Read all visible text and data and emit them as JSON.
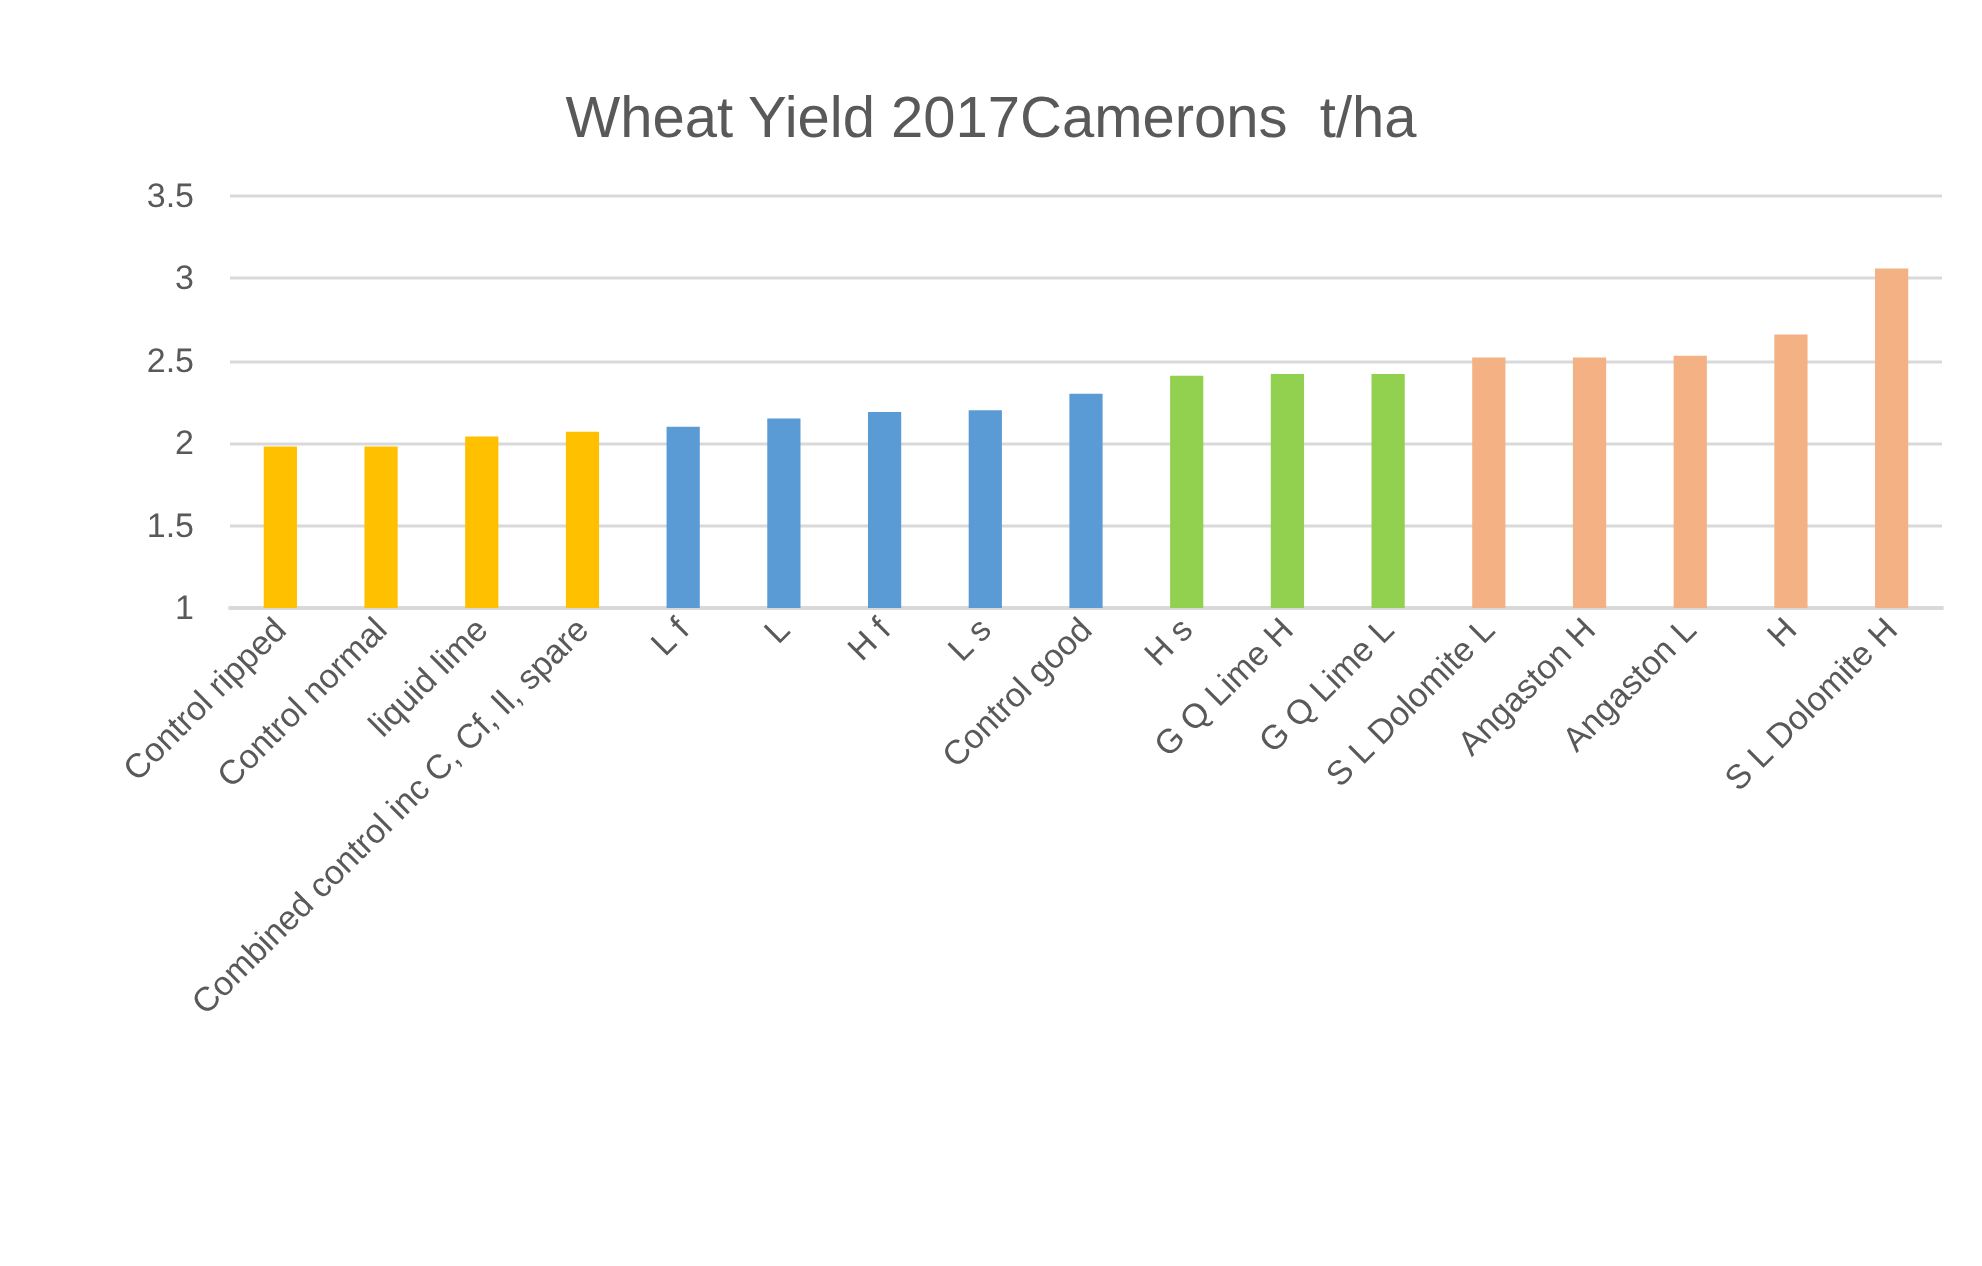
{
  "chart_data": {
    "type": "bar",
    "title": "Wheat Yield 2017Camerons  t/ha",
    "categories": [
      "Control ripped",
      "Control normal",
      "liquid lime",
      "Combined control inc C, Cf, ll, spare",
      "L f",
      "L",
      "H f",
      "L s",
      "Control good",
      "H s",
      "G Q Lime H",
      "G Q Lime L",
      "S L Dolomite L",
      "Angaston H",
      "Angaston L",
      "H",
      "S L Dolomite H"
    ],
    "values": [
      1.98,
      1.98,
      2.04,
      2.07,
      2.1,
      2.15,
      2.19,
      2.2,
      2.3,
      2.41,
      2.42,
      2.42,
      2.52,
      2.52,
      2.53,
      2.66,
      3.06
    ],
    "colors": [
      "#ffc000",
      "#ffc000",
      "#ffc000",
      "#ffc000",
      "#5b9bd5",
      "#5b9bd5",
      "#5b9bd5",
      "#5b9bd5",
      "#5b9bd5",
      "#92d050",
      "#92d050",
      "#92d050",
      "#f4b183",
      "#f4b183",
      "#f4b183",
      "#f4b183",
      "#f4b183"
    ],
    "ylim": [
      1,
      3.5
    ],
    "yticks": [
      1,
      1.5,
      2,
      2.5,
      3,
      3.5
    ],
    "grid": "y"
  }
}
